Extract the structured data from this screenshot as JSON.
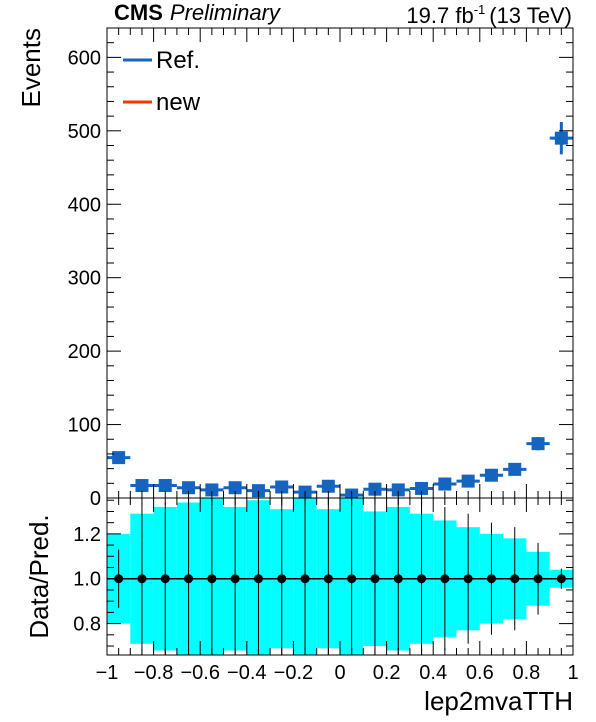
{
  "header": {
    "experiment": "CMS",
    "status": "Preliminary",
    "lumi_value": "19.7 fb",
    "lumi_exponent": "-1",
    "energy": "(13 TeV)"
  },
  "colors": {
    "ref": "#1565c0",
    "new": "#ff3300",
    "band": "#00ffff",
    "ratio_points": "#000000"
  },
  "chart_data": [
    {
      "type": "scatter",
      "name": "main-panel",
      "xlabel": "",
      "ylabel": "Events",
      "xlim": [
        -1,
        1
      ],
      "ylim": [
        0,
        640
      ],
      "yticks": [
        0,
        100,
        200,
        300,
        400,
        500,
        600
      ],
      "bin_edges": [
        -1.0,
        -0.9,
        -0.8,
        -0.7,
        -0.6,
        -0.5,
        -0.4,
        -0.3,
        -0.2,
        -0.1,
        0.0,
        0.1,
        0.2,
        0.3,
        0.4,
        0.5,
        0.6,
        0.7,
        0.8,
        0.9,
        1.0
      ],
      "legend": {
        "placement": "top-left",
        "entries": [
          "Ref.",
          "new"
        ]
      },
      "series": [
        {
          "name": "Ref.",
          "x": [
            -0.95,
            -0.85,
            -0.75,
            -0.65,
            -0.55,
            -0.45,
            -0.35,
            -0.25,
            -0.15,
            -0.05,
            0.05,
            0.15,
            0.25,
            0.35,
            0.45,
            0.55,
            0.65,
            0.75,
            0.85,
            0.95
          ],
          "y": [
            55,
            17,
            17,
            14,
            11,
            14,
            10,
            15,
            8,
            16,
            4,
            12,
            11,
            13,
            19,
            23,
            31,
            39,
            74,
            490
          ],
          "yerr": [
            7,
            4,
            4,
            4,
            3,
            4,
            3,
            4,
            3,
            4,
            2,
            3,
            3,
            4,
            4,
            5,
            6,
            6,
            9,
            22
          ]
        },
        {
          "name": "new",
          "x": [],
          "y": []
        }
      ]
    },
    {
      "type": "scatter",
      "name": "ratio-panel",
      "xlabel": "lep2mvaTTH",
      "ylabel": "Data/Pred.",
      "xlim": [
        -1,
        1
      ],
      "ylim": [
        0.66,
        1.36
      ],
      "yticks": [
        0.8,
        1.0,
        1.2
      ],
      "ytick_labels": [
        "0.8",
        "1.0",
        "1.2"
      ],
      "xticks": [
        -1,
        -0.8,
        -0.6,
        -0.4,
        -0.2,
        0,
        0.2,
        0.4,
        0.6,
        0.8,
        1
      ],
      "xtick_labels": [
        "−1",
        "−0.8",
        "−0.6",
        "−0.4",
        "−0.2",
        "0",
        "0.2",
        "0.4",
        "0.6",
        "0.8",
        "1"
      ],
      "reference_line": 1.0,
      "ratio_x": [
        -0.95,
        -0.85,
        -0.75,
        -0.65,
        -0.55,
        -0.45,
        -0.35,
        -0.25,
        -0.15,
        -0.05,
        0.05,
        0.15,
        0.25,
        0.35,
        0.45,
        0.55,
        0.65,
        0.75,
        0.85,
        0.95
      ],
      "ratio_y": [
        1.0,
        1.0,
        1.0,
        1.0,
        1.0,
        1.0,
        1.0,
        1.0,
        1.0,
        1.0,
        1.0,
        1.0,
        1.0,
        1.0,
        1.0,
        1.0,
        1.0,
        1.0,
        1.0,
        1.0
      ],
      "ratio_err": [
        0.13,
        0.34,
        0.34,
        0.38,
        0.43,
        0.38,
        0.45,
        0.37,
        0.5,
        0.36,
        0.7,
        0.41,
        0.43,
        0.39,
        0.32,
        0.29,
        0.25,
        0.23,
        0.16,
        0.045
      ],
      "band_err": [
        0.2,
        0.29,
        0.32,
        0.34,
        0.36,
        0.32,
        0.35,
        0.31,
        0.36,
        0.31,
        0.38,
        0.3,
        0.32,
        0.29,
        0.26,
        0.23,
        0.2,
        0.18,
        0.12,
        0.04
      ]
    }
  ]
}
